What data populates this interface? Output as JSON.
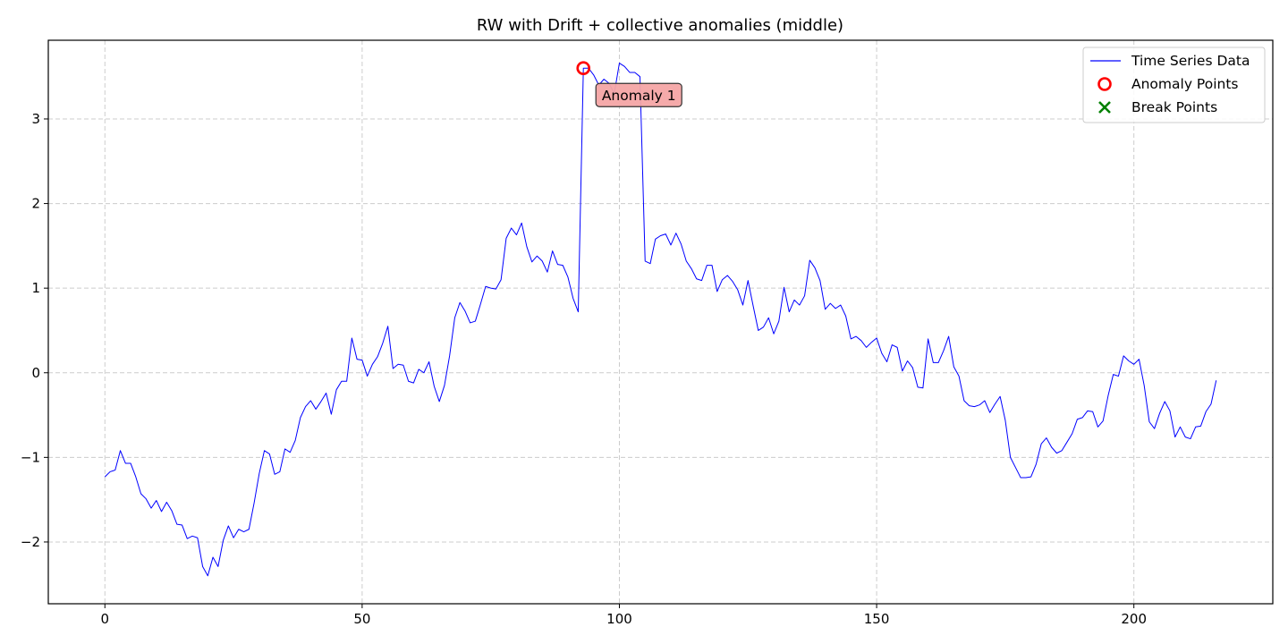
{
  "chart_data": {
    "type": "line",
    "title": "RW with Drift + collective anomalies (middle)",
    "xlabel": "",
    "ylabel": "",
    "xlim": [
      -11,
      227
    ],
    "ylim": [
      -2.73,
      3.93
    ],
    "x_ticks": [
      0,
      50,
      100,
      150,
      200
    ],
    "y_ticks": [
      -2,
      -1,
      0,
      1,
      2,
      3
    ],
    "x_tick_labels": [
      "0",
      "50",
      "100",
      "150",
      "200"
    ],
    "y_tick_labels": [
      "−2",
      "−1",
      "0",
      "1",
      "2",
      "3"
    ],
    "grid": true,
    "legend_position": "top-right",
    "colors": {
      "series": "#0000ff",
      "anomaly": "#ff0000",
      "break": "#008000",
      "annotation_box": "#f4a5a5",
      "grid": "#cccccc"
    },
    "series": [
      {
        "name": "Time Series Data",
        "x_start": 0,
        "values": [
          -1.23,
          -1.17,
          -1.15,
          -0.92,
          -1.07,
          -1.07,
          -1.23,
          -1.43,
          -1.49,
          -1.6,
          -1.51,
          -1.64,
          -1.53,
          -1.63,
          -1.79,
          -1.8,
          -1.96,
          -1.93,
          -1.95,
          -2.29,
          -2.4,
          -2.18,
          -2.29,
          -1.98,
          -1.81,
          -1.95,
          -1.85,
          -1.88,
          -1.85,
          -1.54,
          -1.19,
          -0.92,
          -0.96,
          -1.2,
          -1.17,
          -0.9,
          -0.94,
          -0.8,
          -0.53,
          -0.4,
          -0.33,
          -0.43,
          -0.34,
          -0.24,
          -0.49,
          -0.2,
          -0.1,
          -0.1,
          0.41,
          0.16,
          0.15,
          -0.04,
          0.1,
          0.19,
          0.35,
          0.55,
          0.05,
          0.1,
          0.09,
          -0.1,
          -0.12,
          0.04,
          0.0,
          0.13,
          -0.16,
          -0.34,
          -0.15,
          0.2,
          0.65,
          0.83,
          0.73,
          0.59,
          0.61,
          0.81,
          1.02,
          1.0,
          0.99,
          1.1,
          1.59,
          1.71,
          1.63,
          1.77,
          1.49,
          1.31,
          1.38,
          1.32,
          1.19,
          1.44,
          1.28,
          1.27,
          1.13,
          0.88,
          0.72,
          3.6,
          3.6,
          3.52,
          3.4,
          3.47,
          3.42,
          3.3,
          3.66,
          3.62,
          3.55,
          3.55,
          3.5,
          1.32,
          1.29,
          1.58,
          1.62,
          1.64,
          1.51,
          1.65,
          1.52,
          1.32,
          1.23,
          1.11,
          1.09,
          1.27,
          1.27,
          0.96,
          1.1,
          1.15,
          1.08,
          0.98,
          0.8,
          1.09,
          0.79,
          0.5,
          0.54,
          0.65,
          0.46,
          0.61,
          1.01,
          0.72,
          0.86,
          0.8,
          0.91,
          1.33,
          1.24,
          1.09,
          0.75,
          0.82,
          0.76,
          0.8,
          0.67,
          0.4,
          0.43,
          0.38,
          0.3,
          0.36,
          0.41,
          0.23,
          0.13,
          0.33,
          0.3,
          0.02,
          0.14,
          0.06,
          -0.17,
          -0.18,
          0.4,
          0.12,
          0.12,
          0.26,
          0.43,
          0.07,
          -0.04,
          -0.33,
          -0.39,
          -0.4,
          -0.38,
          -0.33,
          -0.47,
          -0.37,
          -0.28,
          -0.56,
          -1.0,
          -1.12,
          -1.24,
          -1.24,
          -1.23,
          -1.08,
          -0.84,
          -0.77,
          -0.88,
          -0.95,
          -0.92,
          -0.82,
          -0.72,
          -0.55,
          -0.53,
          -0.45,
          -0.46,
          -0.64,
          -0.57,
          -0.27,
          -0.02,
          -0.04,
          0.2,
          0.14,
          0.1,
          0.16,
          -0.15,
          -0.58,
          -0.66,
          -0.48,
          -0.34,
          -0.45,
          -0.76,
          -0.64,
          -0.76,
          -0.78,
          -0.64,
          -0.63,
          -0.46,
          -0.37,
          -0.09
        ]
      }
    ],
    "anomaly_points": [
      {
        "x": 93,
        "y": 3.6
      }
    ],
    "break_points": [],
    "annotations": [
      {
        "text": "Anomaly 1",
        "x": 93,
        "y": 3.6
      }
    ],
    "legend": [
      {
        "label": "Time Series Data",
        "marker": "line"
      },
      {
        "label": "Anomaly Points",
        "marker": "circle"
      },
      {
        "label": "Break Points",
        "marker": "x"
      }
    ]
  }
}
